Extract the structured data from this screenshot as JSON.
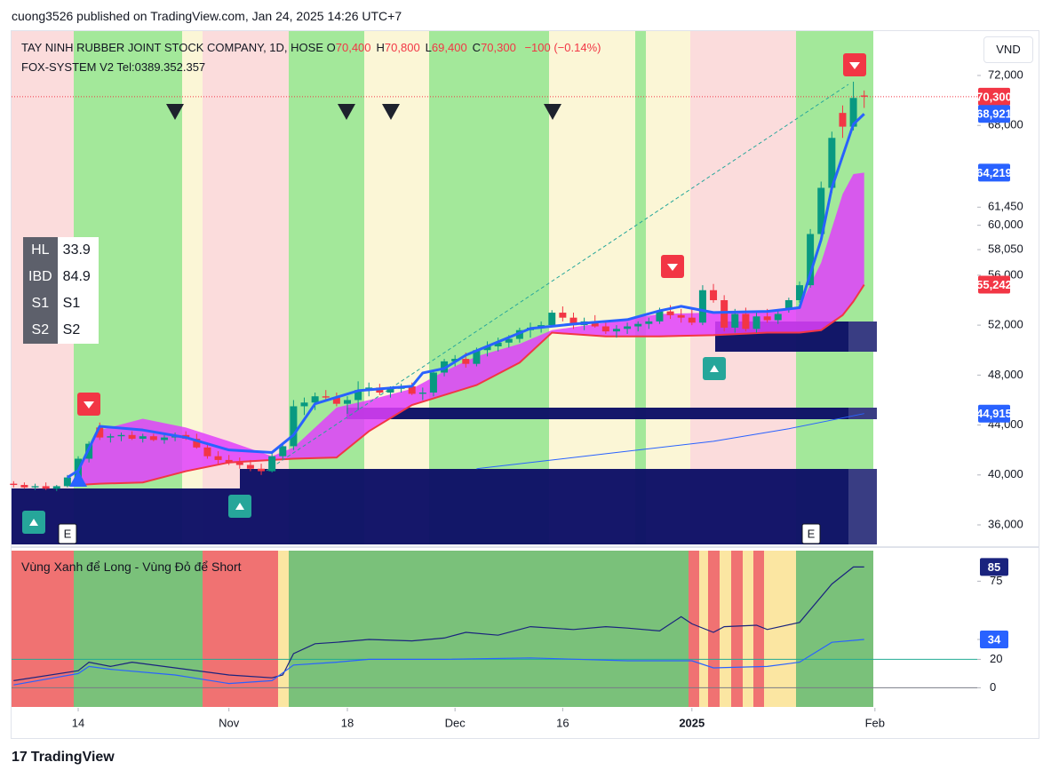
{
  "header": {
    "published": "cuong3526 published on TradingView.com, Jan 24, 2025 14:26 UTC+7",
    "symbol": "TAY NINH RUBBER JOINT STOCK COMPANY, 1D, HOSE",
    "ohlc": [
      {
        "key": "O",
        "value": "70,400"
      },
      {
        "key": "H",
        "value": "70,800"
      },
      {
        "key": "L",
        "value": "69,400"
      },
      {
        "key": "C",
        "value": "70,300"
      }
    ],
    "change": "−100 (−0.14%)",
    "indicator": "FOX-SYSTEM V2 Tel:0389.352.357",
    "currency": "VND"
  },
  "info_table": {
    "rows": [
      [
        "HL",
        "33.9"
      ],
      [
        "IBD",
        "84.9"
      ],
      [
        "S1",
        "S1"
      ],
      [
        "S2",
        "S2"
      ]
    ]
  },
  "footer": {
    "logo": "TradingView"
  },
  "chart_data": [
    {
      "type": "candlestick",
      "open": [
        39300,
        39200,
        39000,
        39100,
        38900,
        39100,
        39800,
        41300,
        43800,
        43000,
        43100,
        43200,
        42900,
        43100,
        42800,
        43000,
        43200,
        42900,
        42200,
        41500,
        41200,
        41000,
        40800,
        40500,
        40300,
        41500,
        42300,
        45500,
        45800,
        46300,
        46200,
        45700,
        46000,
        46800,
        47000,
        46600,
        46900,
        47100,
        46500,
        46600,
        48200,
        49100,
        49300,
        48900,
        50000,
        50300,
        50600,
        50900,
        51600,
        51800,
        52000,
        53000,
        52600,
        52000,
        52300,
        51900,
        51500,
        51700,
        51900,
        52100,
        52300,
        53100,
        52800,
        52600,
        52200,
        54800,
        54000,
        51800,
        52900,
        51700,
        52700,
        52400,
        53300,
        54000,
        55200,
        59300,
        63000,
        69000,
        67900,
        70400
      ],
      "high": [
        39500,
        39400,
        39300,
        39400,
        39200,
        40000,
        41500,
        42700,
        44200,
        43300,
        43400,
        43500,
        43300,
        43300,
        43200,
        43400,
        43500,
        43300,
        42500,
        41900,
        41600,
        41400,
        41200,
        40900,
        41800,
        42600,
        46000,
        46200,
        46600,
        46800,
        46600,
        46300,
        47500,
        47400,
        47300,
        47100,
        47300,
        47400,
        47000,
        48400,
        49300,
        49600,
        49800,
        50200,
        50700,
        51000,
        51200,
        51800,
        52200,
        52300,
        53200,
        53500,
        53000,
        52600,
        52800,
        52400,
        52000,
        52200,
        52300,
        52600,
        53400,
        53600,
        53300,
        53400,
        55200,
        55300,
        54400,
        53300,
        53400,
        53000,
        53300,
        53200,
        54200,
        55500,
        59700,
        63500,
        67500,
        69600,
        71500,
        70800
      ],
      "low": [
        39000,
        38900,
        38800,
        38800,
        38700,
        39000,
        39700,
        41000,
        42800,
        42600,
        42700,
        42800,
        42600,
        42700,
        42500,
        42700,
        42800,
        42100,
        41300,
        40900,
        40800,
        40500,
        40300,
        40000,
        40200,
        41300,
        42000,
        44800,
        45200,
        45900,
        45500,
        44900,
        45200,
        46300,
        46400,
        46200,
        46600,
        46400,
        46000,
        46300,
        47900,
        48700,
        48600,
        48700,
        49500,
        49900,
        50200,
        50600,
        51000,
        51400,
        51900,
        52300,
        51700,
        51600,
        51800,
        51300,
        51000,
        51300,
        51500,
        51700,
        52100,
        52500,
        52200,
        52000,
        52000,
        53800,
        51500,
        51400,
        51500,
        51400,
        52200,
        52100,
        53000,
        53800,
        55000,
        59000,
        62600,
        67000,
        67600,
        69400
      ],
      "close": [
        39200,
        39000,
        39100,
        38900,
        39100,
        39800,
        41300,
        42500,
        43000,
        43100,
        43200,
        42900,
        43100,
        42800,
        43000,
        43200,
        42900,
        42200,
        41500,
        41200,
        41000,
        40800,
        40500,
        40300,
        41500,
        42300,
        45500,
        45800,
        46300,
        46200,
        45700,
        46000,
        46800,
        47000,
        46600,
        46900,
        47100,
        46500,
        46600,
        48200,
        49100,
        49300,
        48900,
        50000,
        50300,
        50600,
        50900,
        51600,
        51800,
        52000,
        53000,
        52600,
        52000,
        52300,
        51900,
        51500,
        51700,
        51900,
        52100,
        52300,
        53100,
        52800,
        52600,
        52200,
        54800,
        54000,
        51800,
        52900,
        51700,
        52700,
        52400,
        52900,
        54000,
        55200,
        59300,
        63000,
        67000,
        67900,
        70200,
        70300
      ],
      "lines": [
        {
          "color": "#2962ff",
          "width": 3,
          "x": [
            5,
            6,
            8,
            12,
            16,
            20,
            24,
            26,
            28,
            32,
            37,
            38,
            40,
            42,
            45,
            48,
            52,
            57,
            60,
            62,
            65,
            70,
            73,
            75,
            76,
            78,
            79
          ],
          "values": [
            39800,
            40350,
            43900,
            43600,
            43000,
            42000,
            41800,
            43200,
            45700,
            46750,
            47110,
            48170,
            48530,
            49600,
            50660,
            51730,
            52090,
            52440,
            53150,
            53510,
            53010,
            53100,
            53400,
            58840,
            63000,
            68090,
            68921
          ]
        },
        {
          "color": "#2962ff",
          "width": 1,
          "x": [
            43,
            55,
            65,
            72,
            79
          ],
          "values": [
            40500,
            41700,
            42700,
            43700,
            44915
          ]
        }
      ],
      "band": {
        "color": "#e040fb",
        "edge_color": "#f23645",
        "x": [
          6,
          8,
          12,
          16,
          20,
          24,
          26,
          30,
          33,
          37,
          40,
          43,
          47,
          50,
          55,
          60,
          65,
          70,
          73,
          75,
          77,
          78,
          79
        ],
        "upper": [
          40600,
          43600,
          44500,
          43800,
          42700,
          41500,
          42200,
          45400,
          46000,
          46900,
          48300,
          49500,
          50500,
          51600,
          52200,
          52900,
          53000,
          53100,
          53500,
          57000,
          62500,
          64100,
          64219
        ],
        "lower": [
          39200,
          39300,
          39400,
          40300,
          41000,
          41200,
          41300,
          41400,
          43500,
          45600,
          46400,
          47200,
          49000,
          51400,
          51100,
          51100,
          51200,
          51400,
          51400,
          51600,
          52800,
          53900,
          55242
        ]
      },
      "price_labels": [
        {
          "value": 70300,
          "label": "70,300",
          "color": "#f23645"
        },
        {
          "value": 68921,
          "label": "68,921",
          "color": "#2962ff"
        },
        {
          "value": 64219,
          "label": "64,219",
          "color": "#2962ff"
        },
        {
          "value": 55242,
          "label": "55,242",
          "color": "#f23645"
        },
        {
          "value": 44915,
          "label": "44,915",
          "color": "#2962ff"
        }
      ],
      "events": [
        "E",
        "E"
      ],
      "xlim": [
        -0.19,
        80.18
      ],
      "ylim": [
        34435,
        75556
      ],
      "xticks": [
        {
          "value": 6,
          "label": "14"
        },
        {
          "value": 20,
          "label": "Nov"
        },
        {
          "value": 31,
          "label": "18"
        },
        {
          "value": 41,
          "label": "Dec"
        },
        {
          "value": 51,
          "label": "16"
        },
        {
          "value": 63,
          "label": "2025"
        },
        {
          "value": 80,
          "label": "Feb"
        }
      ],
      "yticks": [
        {
          "value": 72000,
          "label": "72,000"
        },
        {
          "value": 68000,
          "label": "68,000"
        },
        {
          "value": 61450,
          "label": "61,450"
        },
        {
          "value": 60000,
          "label": "60,000"
        },
        {
          "value": 58050,
          "label": "58,050"
        },
        {
          "value": 56000,
          "label": "56,000"
        },
        {
          "value": 52000,
          "label": "52,000"
        },
        {
          "value": 48000,
          "label": "48,000"
        },
        {
          "value": 44000,
          "label": "44,000"
        },
        {
          "value": 40000,
          "label": "40,000"
        },
        {
          "value": 36000,
          "label": "36,000"
        }
      ],
      "up_color": "#089981",
      "down_color": "#f23645"
    },
    {
      "type": "line",
      "title": "Vùng Xanh để Long - Vùng Đỏ để Short",
      "series": [
        {
          "color": "#1a237e",
          "x": [
            0,
            6,
            7,
            9,
            11,
            15,
            20,
            24,
            25,
            26,
            28,
            30,
            33,
            37,
            40,
            42,
            45,
            48,
            52,
            55,
            57,
            60,
            62,
            63,
            65,
            66,
            69,
            70,
            73,
            76,
            78,
            79
          ],
          "values": [
            5,
            12,
            18,
            15,
            18,
            14,
            9,
            7,
            9,
            24,
            31,
            32,
            34,
            33,
            35,
            39,
            37,
            43,
            41,
            43,
            42,
            40,
            50,
            45,
            39,
            43,
            44,
            41,
            46,
            73,
            85,
            85
          ]
        },
        {
          "color": "#2962ff",
          "x": [
            0,
            6,
            7,
            9,
            15,
            20,
            24,
            26,
            30,
            33,
            40,
            48,
            57,
            63,
            65,
            70,
            73,
            76,
            79
          ],
          "values": [
            2,
            10,
            15,
            13,
            9,
            3,
            5,
            16,
            18,
            20,
            20,
            21,
            19,
            19,
            14,
            15,
            18,
            32,
            34
          ]
        }
      ],
      "value_labels": [
        {
          "value": 85,
          "label": "85",
          "color": "#1a237e"
        },
        {
          "value": 34,
          "label": "34",
          "color": "#2962ff"
        }
      ],
      "level_lines": [
        {
          "value": 20,
          "color": "#22ab94"
        },
        {
          "value": 0,
          "color": "#787b86"
        }
      ],
      "xlim": [
        -0.19,
        80.18
      ],
      "ylim": [
        -13.5,
        96.5
      ],
      "yticks": [
        0,
        20,
        34,
        75
      ]
    }
  ]
}
